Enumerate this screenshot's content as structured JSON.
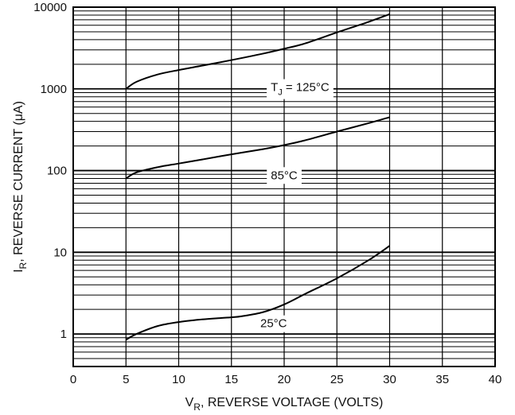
{
  "chart_data": {
    "type": "line",
    "xlabel": {
      "main": "V",
      "sub": "R",
      "rest": ", REVERSE VOLTAGE (VOLTS)"
    },
    "ylabel": {
      "main": "I",
      "sub": "R",
      "rest": ", REVERSE CURRENT (μA)"
    },
    "xlim": [
      0,
      40
    ],
    "ylim": [
      0.4,
      10000
    ],
    "yscale": "log",
    "grid": true,
    "x_ticks": [
      0,
      5,
      10,
      15,
      20,
      25,
      30,
      35,
      40
    ],
    "x_tick_labels": [
      "0",
      "5",
      "10",
      "15",
      "20",
      "25",
      "30",
      "35",
      "40"
    ],
    "y_ticks": [
      1,
      10,
      100,
      1000,
      10000
    ],
    "y_tick_labels": [
      "1",
      "10",
      "100",
      "1000",
      "10000"
    ],
    "series": [
      {
        "name": "TJ = 125°C",
        "label_main": "T",
        "label_sub": "J",
        "label_rest": " = 125°C",
        "label_at": [
          21.5,
          1050
        ],
        "x": [
          5,
          6,
          8,
          10,
          12,
          15,
          18,
          20,
          22,
          25,
          28,
          30
        ],
        "y": [
          1000,
          1220,
          1500,
          1700,
          1900,
          2250,
          2700,
          3100,
          3600,
          4900,
          6600,
          8200
        ]
      },
      {
        "name": "85°C",
        "label_main": "85°C",
        "label_sub": "",
        "label_rest": "",
        "label_at": [
          20.0,
          88
        ],
        "x": [
          5,
          6,
          8,
          10,
          12,
          15,
          18,
          20,
          22,
          25,
          28,
          30
        ],
        "y": [
          80,
          95,
          110,
          122,
          135,
          158,
          183,
          205,
          235,
          300,
          380,
          450
        ]
      },
      {
        "name": "25°C",
        "label_main": "25°C",
        "label_sub": "",
        "label_rest": "",
        "label_at": [
          19.0,
          1.35
        ],
        "x": [
          5,
          6,
          8,
          10,
          12,
          14,
          15,
          16,
          18,
          20,
          22,
          25,
          28,
          30
        ],
        "y": [
          0.85,
          1.0,
          1.25,
          1.4,
          1.5,
          1.57,
          1.6,
          1.65,
          1.85,
          2.3,
          3.1,
          4.8,
          8.0,
          12.0
        ]
      }
    ]
  }
}
